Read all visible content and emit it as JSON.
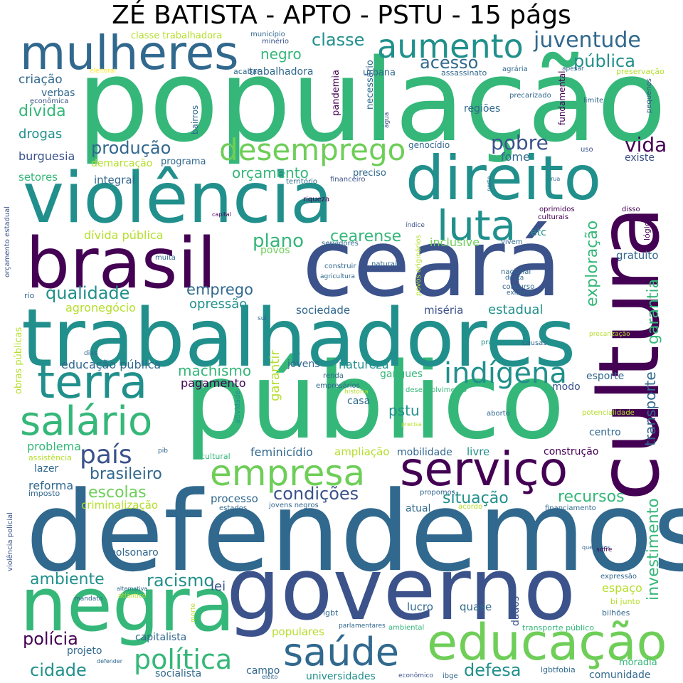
{
  "title": "ZÉ BATISTA - APTO - PSTU - 15 págs",
  "palette": {
    "dark_purple": "#440154",
    "indigo": "#3b528b",
    "blue": "#31688e",
    "teal": "#21908c",
    "green": "#35b779",
    "light_green": "#6ece58",
    "lime": "#b5de2b",
    "yellow": "#fde725"
  },
  "words": [
    {
      "text": "população",
      "color": "#35b779"
    },
    {
      "text": "defendemos",
      "color": "#31688e"
    },
    {
      "text": "público",
      "color": "#35b779"
    },
    {
      "text": "ceará",
      "color": "#3b528b"
    },
    {
      "text": "trabalhadores",
      "color": "#21908c"
    },
    {
      "text": "governo",
      "color": "#3b528b"
    },
    {
      "text": "violência",
      "color": "#21908c"
    },
    {
      "text": "cultura",
      "color": "#440154"
    },
    {
      "text": "brasil",
      "color": "#440154"
    },
    {
      "text": "direito",
      "color": "#21908c"
    },
    {
      "text": "negra",
      "color": "#35b779"
    },
    {
      "text": "mulheres",
      "color": "#31688e"
    },
    {
      "text": "educação",
      "color": "#6ece58"
    },
    {
      "text": "serviço",
      "color": "#440154"
    },
    {
      "text": "terra",
      "color": "#21908c"
    },
    {
      "text": "saúde",
      "color": "#31688e"
    },
    {
      "text": "salário",
      "color": "#35b779"
    },
    {
      "text": "empresa",
      "color": "#6ece58"
    },
    {
      "text": "indígena",
      "color": "#21908c"
    },
    {
      "text": "luta",
      "color": "#21908c"
    },
    {
      "text": "aumento",
      "color": "#21908c"
    },
    {
      "text": "desemprego",
      "color": "#6ece58"
    },
    {
      "text": "política",
      "color": "#35b779"
    },
    {
      "text": "país",
      "color": "#3b528b"
    },
    {
      "text": "juventude",
      "color": "#31688e"
    },
    {
      "text": "pública",
      "color": "#21908c"
    },
    {
      "text": "acesso",
      "color": "#31688e"
    },
    {
      "text": "classe",
      "color": "#21908c"
    },
    {
      "text": "negro",
      "color": "#35b779"
    },
    {
      "text": "produção",
      "color": "#31688e"
    },
    {
      "text": "pobre",
      "color": "#3b528b"
    },
    {
      "text": "vida",
      "color": "#440154"
    },
    {
      "text": "plano",
      "color": "#35b779"
    },
    {
      "text": "cearense",
      "color": "#35b779"
    },
    {
      "text": "orçamento",
      "color": "#35b779"
    },
    {
      "text": "qualidade",
      "color": "#21908c"
    },
    {
      "text": "emprego",
      "color": "#31688e"
    },
    {
      "text": "exploração",
      "color": "#35b779"
    },
    {
      "text": "garantia",
      "color": "#35b779"
    },
    {
      "text": "transporte",
      "color": "#31688e"
    },
    {
      "text": "investimento",
      "color": "#35b779"
    },
    {
      "text": "machismo",
      "color": "#35b779"
    },
    {
      "text": "brasileiro",
      "color": "#31688e"
    },
    {
      "text": "escolas",
      "color": "#6ece58"
    },
    {
      "text": "condições",
      "color": "#3b528b"
    },
    {
      "text": "situação",
      "color": "#21908c"
    },
    {
      "text": "recursos",
      "color": "#35b779"
    },
    {
      "text": "ambiente",
      "color": "#21908c"
    },
    {
      "text": "racismo",
      "color": "#21908c"
    },
    {
      "text": "polícia",
      "color": "#440154"
    },
    {
      "text": "cidade",
      "color": "#21908c"
    },
    {
      "text": "defesa",
      "color": "#21908c"
    },
    {
      "text": "pstu",
      "color": "#21908c"
    },
    {
      "text": "criação",
      "color": "#31688e"
    },
    {
      "text": "dívida",
      "color": "#35b779"
    },
    {
      "text": "drogas",
      "color": "#21908c"
    },
    {
      "text": "verbas",
      "color": "#31688e"
    },
    {
      "text": "burguesia",
      "color": "#3b528b"
    },
    {
      "text": "setores",
      "color": "#35b779"
    },
    {
      "text": "integral",
      "color": "#31688e"
    },
    {
      "text": "demarcação",
      "color": "#b5de2b"
    },
    {
      "text": "programa",
      "color": "#31688e"
    },
    {
      "text": "trabalhadora",
      "color": "#31688e"
    },
    {
      "text": "regiões",
      "color": "#31688e"
    },
    {
      "text": "fome",
      "color": "#31688e"
    },
    {
      "text": "existe",
      "color": "#3b528b"
    },
    {
      "text": "gratuito",
      "color": "#31688e"
    },
    {
      "text": "etc",
      "color": "#21908c"
    },
    {
      "text": "inclusive",
      "color": "#6ece58"
    },
    {
      "text": "dívida pública",
      "color": "#b5de2b"
    },
    {
      "text": "povos",
      "color": "#6ece58"
    },
    {
      "text": "agronegócio",
      "color": "#b5de2b"
    },
    {
      "text": "opressão",
      "color": "#21908c"
    },
    {
      "text": "sociedade",
      "color": "#31688e"
    },
    {
      "text": "miséria",
      "color": "#3b528b"
    },
    {
      "text": "estadual",
      "color": "#21908c"
    },
    {
      "text": "educação pública",
      "color": "#31688e"
    },
    {
      "text": "jovens",
      "color": "#31688e"
    },
    {
      "text": "natureza",
      "color": "#21908c"
    },
    {
      "text": "gangues",
      "color": "#35b779"
    },
    {
      "text": "esporte",
      "color": "#31688e"
    },
    {
      "text": "pagamento",
      "color": "#440154"
    },
    {
      "text": "casa",
      "color": "#31688e"
    },
    {
      "text": "modo",
      "color": "#3b528b"
    },
    {
      "text": "centro",
      "color": "#31688e"
    },
    {
      "text": "construção",
      "color": "#440154"
    },
    {
      "text": "problema",
      "color": "#35b779"
    },
    {
      "text": "lazer",
      "color": "#31688e"
    },
    {
      "text": "reforma",
      "color": "#31688e"
    },
    {
      "text": "feminicídio",
      "color": "#31688e"
    },
    {
      "text": "ampliação",
      "color": "#b5de2b"
    },
    {
      "text": "mobilidade",
      "color": "#31688e"
    },
    {
      "text": "livre",
      "color": "#21908c"
    },
    {
      "text": "processo",
      "color": "#31688e"
    },
    {
      "text": "atual",
      "color": "#31688e"
    },
    {
      "text": "criminalização",
      "color": "#b5de2b"
    },
    {
      "text": "bolsonaro",
      "color": "#31688e"
    },
    {
      "text": "lei",
      "color": "#3b528b"
    },
    {
      "text": "espaço",
      "color": "#b5de2b"
    },
    {
      "text": "lucro",
      "color": "#31688e"
    },
    {
      "text": "quase",
      "color": "#31688e"
    },
    {
      "text": "dados",
      "color": "#3b528b"
    },
    {
      "text": "capitalista",
      "color": "#31688e"
    },
    {
      "text": "projeto",
      "color": "#31688e"
    },
    {
      "text": "socialista",
      "color": "#31688e"
    },
    {
      "text": "campo",
      "color": "#31688e"
    },
    {
      "text": "populares",
      "color": "#b5de2b"
    },
    {
      "text": "universidades",
      "color": "#21908c"
    },
    {
      "text": "comunidade",
      "color": "#31688e"
    },
    {
      "text": "moradia",
      "color": "#35b779"
    },
    {
      "text": "classe trabalhadora",
      "color": "#b5de2b"
    },
    {
      "text": "município",
      "color": "#31688e"
    },
    {
      "text": "minério",
      "color": "#3b528b"
    },
    {
      "text": "eleitoral",
      "color": "#fde725"
    },
    {
      "text": "acabar",
      "color": "#31688e"
    },
    {
      "text": "econômica",
      "color": "#3b528b"
    },
    {
      "text": "urbana",
      "color": "#31688e"
    },
    {
      "text": "necessário",
      "color": "#31688e"
    },
    {
      "text": "pandemia",
      "color": "#440154"
    },
    {
      "text": "água",
      "color": "#3b528b"
    },
    {
      "text": "assassinato",
      "color": "#31688e"
    },
    {
      "text": "agrária",
      "color": "#31688e"
    },
    {
      "text": "apesar",
      "color": "#31688e"
    },
    {
      "text": "preservação",
      "color": "#b5de2b"
    },
    {
      "text": "fundamental",
      "color": "#440154"
    },
    {
      "text": "precarizado",
      "color": "#31688e"
    },
    {
      "text": "limite",
      "color": "#31688e"
    },
    {
      "text": "pequenos",
      "color": "#3b528b"
    },
    {
      "text": "bairros",
      "color": "#31688e"
    },
    {
      "text": "genocídio",
      "color": "#31688e"
    },
    {
      "text": "uso",
      "color": "#3b528b"
    },
    {
      "text": "preciso",
      "color": "#31688e"
    },
    {
      "text": "financeiro",
      "color": "#3b528b"
    },
    {
      "text": "território",
      "color": "#31688e"
    },
    {
      "text": "norte",
      "color": "#31688e"
    },
    {
      "text": "rua",
      "color": "#31688e"
    },
    {
      "text": "riqueza",
      "color": "#440154"
    },
    {
      "text": "oprimidos",
      "color": "#440154"
    },
    {
      "text": "culturais",
      "color": "#440154"
    },
    {
      "text": "disso",
      "color": "#440154"
    },
    {
      "text": "capital",
      "color": "#440154"
    },
    {
      "text": "lógica",
      "color": "#440154"
    },
    {
      "text": "índice",
      "color": "#3b528b"
    },
    {
      "text": "servidores",
      "color": "#31688e"
    },
    {
      "text": "vivem",
      "color": "#31688e"
    },
    {
      "text": "orçamento estadual",
      "color": "#3b528b"
    },
    {
      "text": "muita",
      "color": "#31688e"
    },
    {
      "text": "construir",
      "color": "#31688e"
    },
    {
      "text": "naturais",
      "color": "#31688e"
    },
    {
      "text": "agricultura",
      "color": "#31688e"
    },
    {
      "text": "povos originários",
      "color": "#b5de2b"
    },
    {
      "text": "nacional",
      "color": "#31688e"
    },
    {
      "text": "direta",
      "color": "#31688e"
    },
    {
      "text": "concurso",
      "color": "#31688e"
    },
    {
      "text": "existem",
      "color": "#31688e"
    },
    {
      "text": "rio",
      "color": "#31688e"
    },
    {
      "text": "sul",
      "color": "#31688e"
    },
    {
      "text": "precarização",
      "color": "#b5de2b"
    },
    {
      "text": "prática",
      "color": "#21908c"
    },
    {
      "text": "causas",
      "color": "#31688e"
    },
    {
      "text": "dias",
      "color": "#31688e"
    },
    {
      "text": "obras públicas",
      "color": "#b5de2b"
    },
    {
      "text": "renda",
      "color": "#31688e"
    },
    {
      "text": "empresários",
      "color": "#31688e"
    },
    {
      "text": "história",
      "color": "#b5de2b"
    },
    {
      "text": "desenvolvimento",
      "color": "#35b779"
    },
    {
      "text": "atividade",
      "color": "#21908c"
    },
    {
      "text": "aborto",
      "color": "#31688e"
    },
    {
      "text": "potencialidade",
      "color": "#b5de2b"
    },
    {
      "text": "precisa",
      "color": "#b5de2b"
    },
    {
      "text": "assistência",
      "color": "#b5de2b"
    },
    {
      "text": "pib",
      "color": "#31688e"
    },
    {
      "text": "cultural",
      "color": "#35b779"
    },
    {
      "text": "imposto",
      "color": "#31688e"
    },
    {
      "text": "propomos",
      "color": "#31688e"
    },
    {
      "text": "estados",
      "color": "#31688e"
    },
    {
      "text": "jovens negros",
      "color": "#31688e"
    },
    {
      "text": "acordo",
      "color": "#b5de2b"
    },
    {
      "text": "financiamento",
      "color": "#31688e"
    },
    {
      "text": "queremos",
      "color": "#31688e"
    },
    {
      "text": "violência policial",
      "color": "#3b528b"
    },
    {
      "text": "alternativa",
      "color": "#31688e"
    },
    {
      "text": "atlântico",
      "color": "#b5de2b"
    },
    {
      "text": "sofre",
      "color": "#440154"
    },
    {
      "text": "expressão",
      "color": "#31688e"
    },
    {
      "text": "bi junto",
      "color": "#b5de2b"
    },
    {
      "text": "bilhões",
      "color": "#31688e"
    },
    {
      "text": "mandato",
      "color": "#31688e"
    },
    {
      "text": "morte",
      "color": "#b5de2b"
    },
    {
      "text": "lgbt",
      "color": "#31688e"
    },
    {
      "text": "parlamentares",
      "color": "#31688e"
    },
    {
      "text": "ambiental",
      "color": "#35b779"
    },
    {
      "text": "transporte público",
      "color": "#35b779"
    },
    {
      "text": "defender",
      "color": "#31688e"
    },
    {
      "text": "eleito",
      "color": "#31688e"
    },
    {
      "text": "econômico",
      "color": "#3b528b"
    },
    {
      "text": "ibge",
      "color": "#31688e"
    },
    {
      "text": "lgbtfobia",
      "color": "#31688e"
    },
    {
      "text": "garantir",
      "color": "#b5de2b"
    }
  ]
}
